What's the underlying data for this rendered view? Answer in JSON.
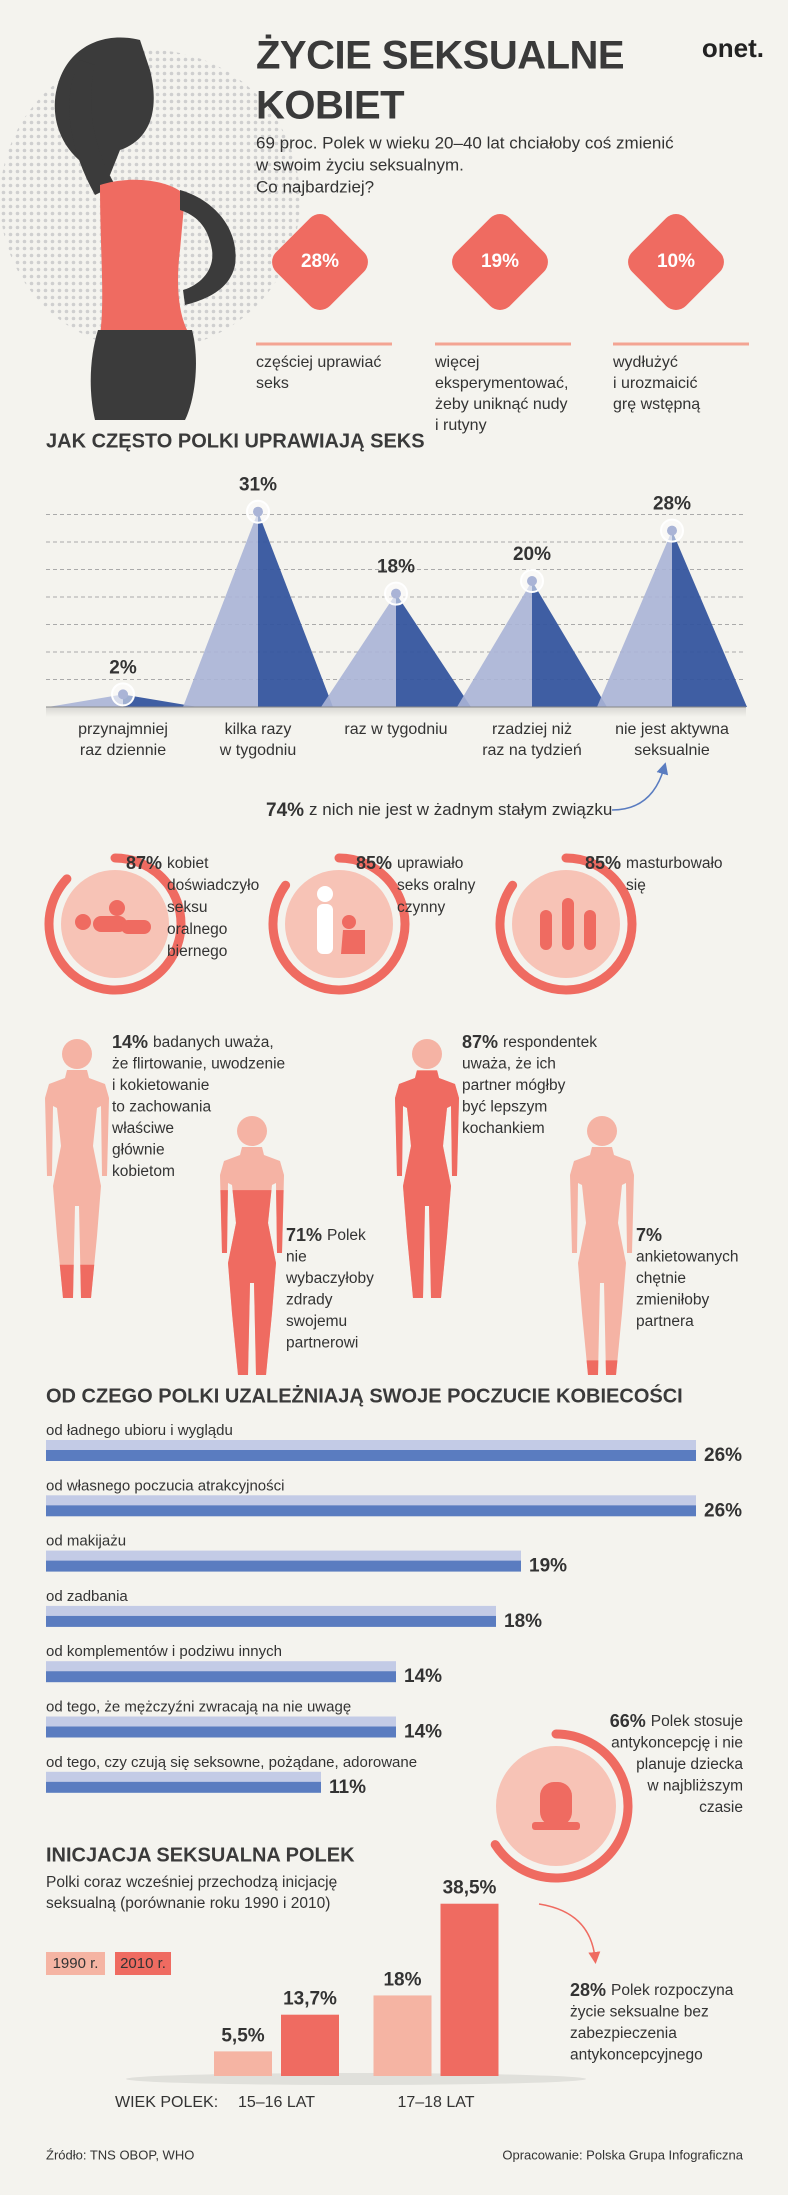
{
  "header": {
    "title": [
      "ŻYCIE SEKSUALNE",
      "KOBIET"
    ],
    "logo": "onet.",
    "subtitle": [
      "69 proc. Polek w wieku 20–40 lat chciałoby coś zmienić",
      "w swoim życiu seksualnym.",
      "Co najbardziej?"
    ]
  },
  "wishes": [
    {
      "label": "28%",
      "text": [
        "częściej uprawiać",
        "seks"
      ]
    },
    {
      "label": "19%",
      "text": [
        "więcej",
        "eksperymentować,",
        "żeby uniknąć nudy",
        "i rutyny"
      ]
    },
    {
      "label": "10%",
      "text": [
        "wydłużyć",
        "i urozmaicić",
        "grę wstępną"
      ]
    }
  ],
  "chart_data": [
    {
      "type": "triangle",
      "title": "JAK CZĘSTO POLKI UPRAWIAJĄ SEKS",
      "categories": [
        [
          "przynajmniej",
          "raz dziennie"
        ],
        [
          "kilka razy",
          "w tygodniu"
        ],
        [
          "raz w tygodniu"
        ],
        [
          "rzadziej niż",
          "raz na tydzień"
        ],
        [
          "nie jest aktywna",
          "seksualnie"
        ]
      ],
      "values": [
        2,
        31,
        18,
        20,
        28
      ],
      "value_labels": [
        "2%",
        "31%",
        "18%",
        "20%",
        "28%"
      ],
      "ylim": [
        0,
        35
      ],
      "color": "#35559e",
      "color_light": "#aab4d6",
      "grid": true
    },
    {
      "type": "bar",
      "orientation": "horizontal",
      "title": "OD CZEGO POLKI UZALEŻNIAJĄ SWOJE POCZUCIE KOBIECOŚCI",
      "categories": [
        "od ładnego ubioru i wyglądu",
        "od własnego poczucia atrakcyjności",
        "od makijażu",
        "od zadbania",
        "od komplementów i podziwu innych",
        "od tego, że mężczyźni zwracają na nie uwagę",
        "od tego, czy czują się seksowne, pożądane, adorowane"
      ],
      "values": [
        26,
        26,
        19,
        18,
        14,
        14,
        11
      ],
      "value_labels": [
        "26%",
        "26%",
        "19%",
        "18%",
        "14%",
        "14%",
        "11%"
      ],
      "xlim": [
        0,
        28
      ],
      "color": "#5a7cc0",
      "color_light": "#c3cbe6"
    },
    {
      "type": "bar",
      "orientation": "vertical",
      "title": "INICJACJA SEKSUALNA POLEK",
      "subtitle": [
        "Polki coraz wcześniej przechodzą inicjację",
        "seksualną (porównanie roku 1990 i 2010)"
      ],
      "x_label": "WIEK POLEK:",
      "categories": [
        "15–16 LAT",
        "17–18 LAT"
      ],
      "series": [
        {
          "name": "1990 r.",
          "color": "#f5b4a3",
          "values": [
            5.5,
            18
          ],
          "value_labels": [
            "5,5%",
            "18%"
          ]
        },
        {
          "name": "2010 r.",
          "color": "#ef6b61",
          "values": [
            13.7,
            38.5
          ],
          "value_labels": [
            "13,7%",
            "38,5%"
          ]
        }
      ],
      "ylim": [
        0,
        40
      ]
    }
  ],
  "frequency_note": {
    "label": "74%",
    "text": "z nich nie jest w żadnym stałym związku"
  },
  "experiences": [
    {
      "value": 87,
      "value_label": "87%",
      "lines": [
        "kobiet",
        "doświadczyło",
        "seksu",
        "oralnego",
        "biernego"
      ]
    },
    {
      "value": 85,
      "value_label": "85%",
      "lines": [
        "uprawiało",
        "seks oralny",
        "czynny"
      ]
    },
    {
      "value": 85,
      "value_label": "85%",
      "lines": [
        "masturbowało",
        "się"
      ]
    }
  ],
  "figures": [
    {
      "value": 14,
      "value_label": "14%",
      "lines": [
        "badanych uważa,",
        "że flirtowanie, uwodzenie",
        "i kokietowanie",
        "to zachowania",
        "właściwe",
        "głównie",
        "kobietom"
      ]
    },
    {
      "value": 71,
      "value_label": "71%",
      "lines": [
        "Polek",
        "nie",
        "wybaczyłoby",
        "zdrady",
        "swojemu",
        "partnerowi"
      ]
    },
    {
      "value": 87,
      "value_label": "87%",
      "lines": [
        "respondentek",
        "uważa, że ich",
        "partner mógłby",
        "być lepszym",
        "kochankiem"
      ]
    },
    {
      "value": 7,
      "value_label": "7%",
      "lines": [
        "ankietowanych",
        "chętnie",
        "zmieniłoby",
        "partnera"
      ],
      "label_own_line": true
    }
  ],
  "contraception": {
    "value": 66,
    "value_label": "66%",
    "lines": [
      "Polek stosuje",
      "antykoncepcję i nie",
      "planuje dziecka",
      "w najbliższym",
      "czasie"
    ]
  },
  "initiation_note": {
    "label": "28%",
    "lines": [
      "Polek rozpoczyna",
      "życie seksualne bez",
      "zabezpieczenia",
      "antykoncepcyjnego"
    ]
  },
  "footer": {
    "source": "Źródło: TNS OBOP, WHO",
    "credit": "Opracowanie: Polska Grupa Infograficzna"
  }
}
